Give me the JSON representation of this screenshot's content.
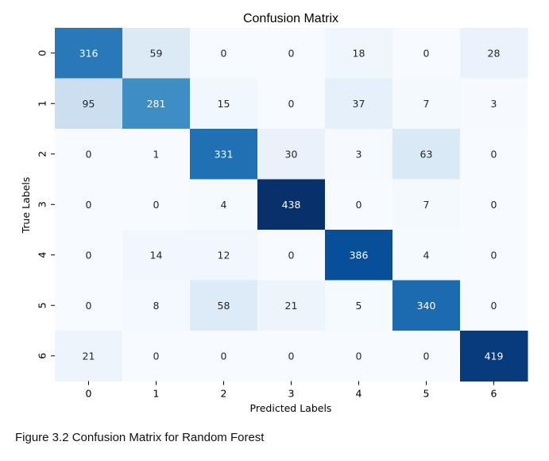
{
  "chart_data": {
    "type": "heatmap",
    "title": "Confusion Matrix",
    "xlabel": "Predicted Labels",
    "ylabel": "True Labels",
    "x_categories": [
      "0",
      "1",
      "2",
      "3",
      "4",
      "5",
      "6"
    ],
    "y_categories": [
      "0",
      "1",
      "2",
      "3",
      "4",
      "5",
      "6"
    ],
    "values": [
      [
        316,
        59,
        0,
        0,
        18,
        0,
        28
      ],
      [
        95,
        281,
        15,
        0,
        37,
        7,
        3
      ],
      [
        0,
        1,
        331,
        30,
        3,
        63,
        0
      ],
      [
        0,
        0,
        4,
        438,
        0,
        7,
        0
      ],
      [
        0,
        14,
        12,
        0,
        386,
        4,
        0
      ],
      [
        0,
        8,
        58,
        21,
        5,
        340,
        0
      ],
      [
        21,
        0,
        0,
        0,
        0,
        0,
        419
      ]
    ],
    "colormap": "Blues",
    "value_range": [
      0,
      438
    ],
    "colorbar": false
  },
  "caption": "Figure 3.2 Confusion Matrix for Random Forest"
}
